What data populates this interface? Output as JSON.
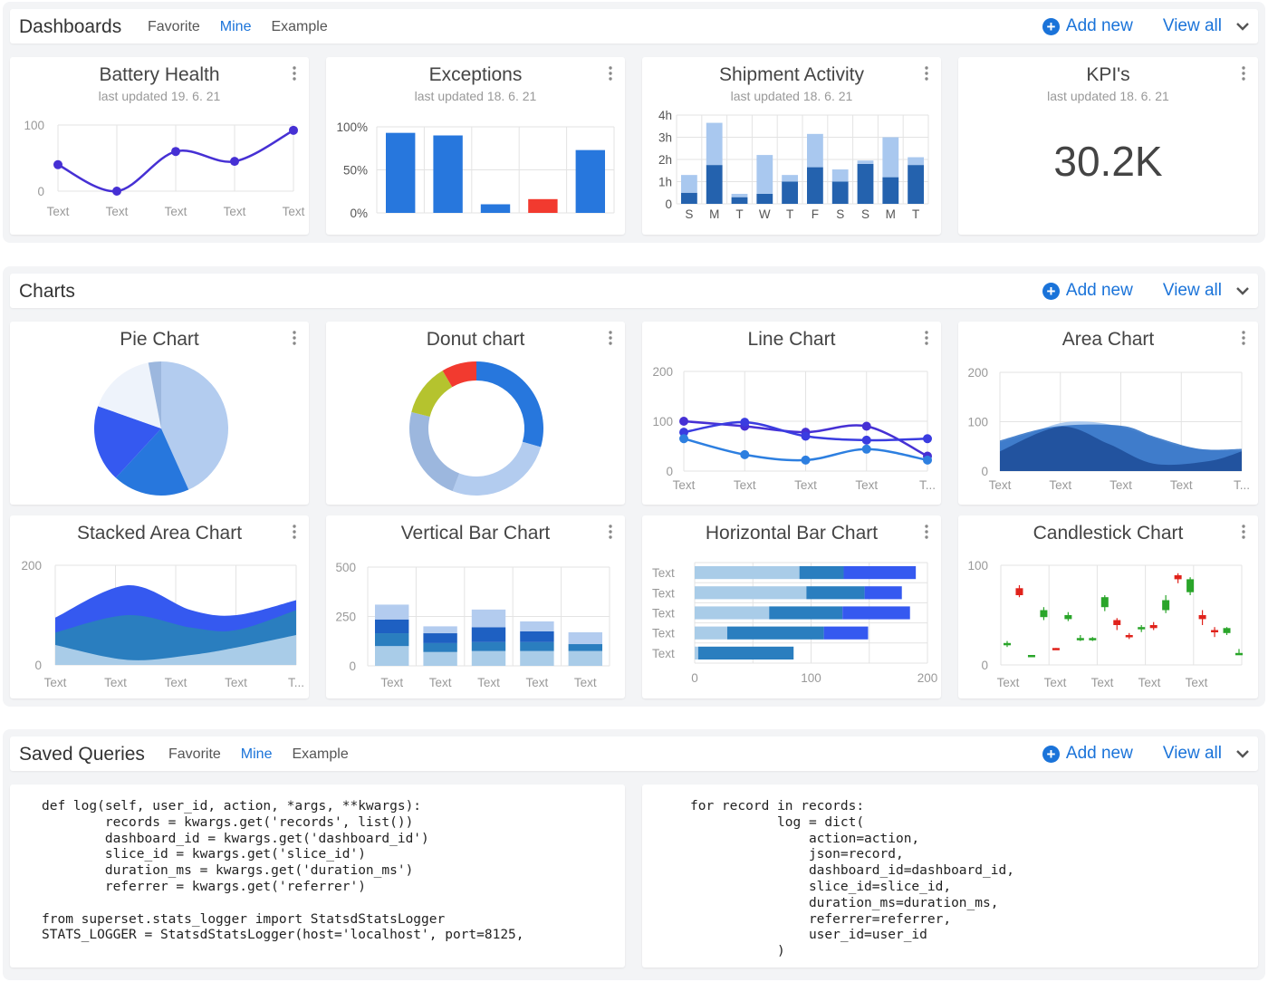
{
  "dashboards": {
    "title": "Dashboards",
    "tabs": [
      {
        "label": "Favorite"
      },
      {
        "label": "Mine"
      },
      {
        "label": "Example"
      }
    ],
    "active_tab": "Mine",
    "add_new": "Add new",
    "view_all": "View all",
    "cards": [
      {
        "title": "Battery Health",
        "updated": "last updated 19. 6. 21"
      },
      {
        "title": "Exceptions",
        "updated": "last updated 18. 6. 21"
      },
      {
        "title": "Shipment Activity",
        "updated": "last updated 18. 6. 21"
      },
      {
        "title": "KPI's",
        "updated": "last updated 18. 6. 21",
        "value": "30.2K"
      }
    ]
  },
  "charts": {
    "title": "Charts",
    "add_new": "Add new",
    "view_all": "View all",
    "cards": [
      {
        "title": "Pie Chart"
      },
      {
        "title": "Donut chart"
      },
      {
        "title": "Line Chart"
      },
      {
        "title": "Area Chart"
      },
      {
        "title": "Stacked Area Chart"
      },
      {
        "title": "Vertical Bar Chart"
      },
      {
        "title": "Horizontal Bar Chart"
      },
      {
        "title": "Candlestick Chart"
      }
    ]
  },
  "saved_queries": {
    "title": "Saved Queries",
    "tabs": [
      {
        "label": "Favorite"
      },
      {
        "label": "Mine"
      },
      {
        "label": "Example"
      }
    ],
    "active_tab": "Mine",
    "add_new": "Add new",
    "view_all": "View all",
    "code_left": "def log(self, user_id, action, *args, **kwargs):\n        records = kwargs.get('records', list())\n        dashboard_id = kwargs.get('dashboard_id')\n        slice_id = kwargs.get('slice_id')\n        duration_ms = kwargs.get('duration_ms')\n        referrer = kwargs.get('referrer')\n\nfrom superset.stats_logger import StatsdStatsLogger\nSTATS_LOGGER = StatsdStatsLogger(host='localhost', port=8125,",
    "code_right": "for record in records:\n           log = dict(\n               action=action,\n               json=record,\n               dashboard_id=dashboard_id,\n               slice_id=slice_id,\n               duration_ms=duration_ms,\n               referrer=referrer,\n               user_id=user_id\n           )"
  },
  "colors": {
    "accent": "#1a73d9",
    "primary_blue": "#2777dd",
    "dark_blue": "#2462ae",
    "light_blue": "#a9c8ef",
    "red": "#f23a2f",
    "purple": "#4630d4"
  },
  "chart_data": [
    {
      "id": "battery",
      "type": "line",
      "categories": [
        "Text",
        "Text",
        "Text",
        "Text",
        "Text"
      ],
      "yticks": [
        0,
        100
      ],
      "ylim": [
        0,
        100
      ],
      "series": [
        {
          "values": [
            40,
            0,
            60,
            45,
            92
          ]
        }
      ]
    },
    {
      "id": "exceptions",
      "type": "bar",
      "categories": [
        "",
        "",
        "",
        "",
        ""
      ],
      "yticks": [
        "0%",
        "50%",
        "100%"
      ],
      "ylim": [
        0,
        100
      ],
      "values": [
        93,
        90,
        10,
        16,
        73
      ],
      "highlight_index": 3
    },
    {
      "id": "shipment",
      "type": "bar",
      "stacked": true,
      "categories": [
        "S",
        "M",
        "T",
        "W",
        "T",
        "F",
        "S",
        "S",
        "M",
        "T"
      ],
      "yticks": [
        "0",
        "1h",
        "2h",
        "3h",
        "4h"
      ],
      "ylim": [
        0,
        4
      ],
      "series": [
        {
          "values": [
            0.5,
            1.75,
            0.3,
            0.45,
            1.0,
            1.65,
            1.0,
            1.8,
            1.2,
            1.75
          ]
        },
        {
          "values": [
            0.8,
            1.9,
            0.15,
            1.75,
            0.3,
            1.5,
            0.55,
            0.15,
            1.8,
            0.35
          ]
        }
      ]
    },
    {
      "id": "pie",
      "type": "pie",
      "values": [
        42,
        18,
        18,
        16,
        3
      ],
      "colors": [
        "#b3ccef",
        "#2777dd",
        "#3559f0",
        "#eef3fb",
        "#9cb7de"
      ]
    },
    {
      "id": "donut",
      "type": "pie",
      "donut": true,
      "values": [
        28,
        25,
        22,
        12,
        8
      ],
      "colors": [
        "#2777dd",
        "#b3ccef",
        "#9cb7de",
        "#b5c32e",
        "#f23a2f"
      ]
    },
    {
      "id": "line",
      "type": "line",
      "categories": [
        "Text",
        "Text",
        "Text",
        "Text",
        "T..."
      ],
      "yticks": [
        0,
        100,
        200
      ],
      "ylim": [
        0,
        200
      ],
      "series": [
        {
          "values": [
            100,
            90,
            78,
            90,
            30
          ]
        },
        {
          "values": [
            78,
            98,
            70,
            62,
            65
          ]
        },
        {
          "values": [
            65,
            33,
            22,
            44,
            22
          ]
        }
      ]
    },
    {
      "id": "area",
      "type": "area",
      "categories": [
        "Text",
        "Text",
        "Text",
        "Text",
        "T..."
      ],
      "yticks": [
        0,
        100,
        200
      ],
      "ylim": [
        0,
        200
      ]
    },
    {
      "id": "stacked_area",
      "type": "area",
      "stacked": true,
      "categories": [
        "Text",
        "Text",
        "Text",
        "Text",
        "T..."
      ],
      "yticks": [
        0,
        200
      ],
      "ylim": [
        0,
        200
      ]
    },
    {
      "id": "vbar",
      "type": "bar",
      "stacked": true,
      "categories": [
        "Text",
        "Text",
        "Text",
        "Text",
        "Text"
      ],
      "yticks": [
        0,
        250,
        500
      ],
      "ylim": [
        0,
        500
      ],
      "series": [
        {
          "values": [
            100,
            70,
            75,
            75,
            75
          ]
        },
        {
          "values": [
            65,
            45,
            45,
            45,
            35
          ]
        },
        {
          "values": [
            70,
            50,
            75,
            55,
            0
          ]
        },
        {
          "values": [
            75,
            35,
            90,
            50,
            60
          ]
        }
      ]
    },
    {
      "id": "hbar",
      "type": "bar",
      "horizontal": true,
      "categories": [
        "Text",
        "Text",
        "Text",
        "Text",
        "Text"
      ],
      "xticks": [
        0,
        100,
        200
      ],
      "xlim": [
        0,
        200
      ],
      "series": [
        {
          "values": [
            90,
            96,
            64,
            28,
            3
          ]
        },
        {
          "values": [
            38,
            50,
            63,
            83,
            82
          ]
        },
        {
          "values": [
            62,
            32,
            58,
            38,
            0
          ]
        }
      ]
    },
    {
      "id": "candle",
      "type": "candlestick",
      "categories": [
        "Text",
        "Text",
        "Text",
        "Text",
        "Text"
      ],
      "yticks": [
        0,
        100
      ],
      "ylim": [
        0,
        100
      ]
    }
  ]
}
